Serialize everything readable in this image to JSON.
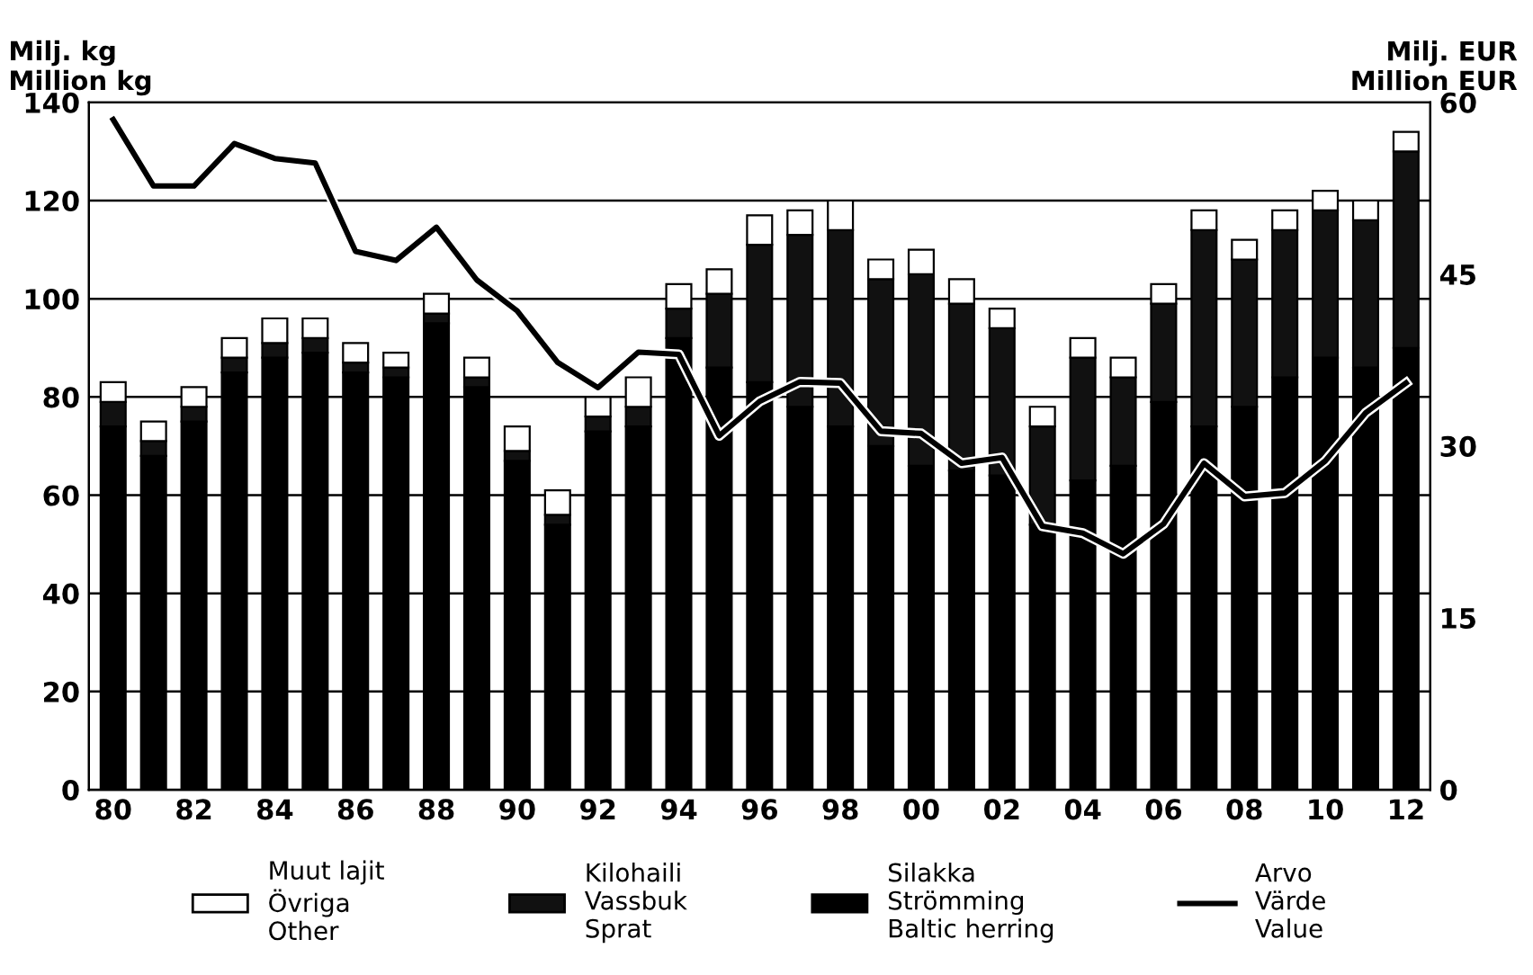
{
  "chart_data": {
    "type": "bar",
    "stacked": true,
    "ylabel": "Milj. kg\nMillion kg",
    "y2label": "Milj. EUR\nMillion EUR",
    "categories": [
      "80",
      null,
      "82",
      null,
      "84",
      null,
      "86",
      null,
      "88",
      null,
      "90",
      null,
      "92",
      null,
      "94",
      null,
      "96",
      null,
      "98",
      null,
      "00",
      null,
      "02",
      null,
      "04",
      null,
      "06",
      null,
      "08",
      null,
      "10",
      null,
      "12"
    ],
    "series": [
      {
        "name": "Silakka\nStrömming\nBaltic herring",
        "color": "#000000",
        "values": [
          74,
          68,
          75,
          85,
          88,
          89,
          85,
          84,
          95,
          82,
          67,
          54,
          73,
          74,
          92,
          86,
          83,
          78,
          74,
          70,
          66,
          65,
          64,
          54,
          63,
          66,
          79,
          74,
          78,
          84,
          88,
          86,
          90
        ]
      },
      {
        "name": "Kilohaili\nVassbuk\nSprat",
        "color": "#111111",
        "values": [
          5,
          3,
          3,
          3,
          3,
          3,
          2,
          2,
          2,
          2,
          2,
          2,
          3,
          4,
          6,
          15,
          28,
          35,
          40,
          34,
          39,
          34,
          30,
          20,
          25,
          18,
          20,
          40,
          30,
          30,
          30,
          30,
          40
        ]
      },
      {
        "name": "Muut lajit\nÖvriga\nOther",
        "color": "#ffffff",
        "values": [
          4,
          4,
          4,
          4,
          5,
          4,
          4,
          3,
          4,
          4,
          5,
          5,
          4,
          6,
          5,
          5,
          6,
          5,
          6,
          4,
          5,
          5,
          4,
          4,
          4,
          4,
          4,
          4,
          4,
          4,
          4,
          4,
          4
        ]
      },
      {
        "name": "Arvo\nVärde\nValue",
        "type": "line",
        "axis": "y2",
        "color": "#000000",
        "values": [
          58.5,
          52.7,
          52.7,
          56.4,
          55.1,
          54.7,
          47.0,
          46.2,
          49.1,
          44.5,
          41.8,
          37.3,
          35.1,
          38.2,
          38.0,
          30.9,
          33.9,
          35.6,
          35.5,
          31.3,
          31.1,
          28.5,
          29.0,
          23.0,
          22.4,
          20.6,
          23.2,
          28.5,
          25.6,
          25.9,
          28.7,
          32.9,
          35.5
        ]
      }
    ],
    "ylim": [
      0,
      140
    ],
    "yticks": [
      0,
      20,
      40,
      60,
      80,
      100,
      120,
      140
    ],
    "y2lim": [
      0,
      60
    ],
    "y2ticks": [
      0,
      15,
      30,
      45,
      60
    ],
    "grid": "y",
    "legend": "bottom",
    "marker": "none",
    "line_style": "solid"
  }
}
